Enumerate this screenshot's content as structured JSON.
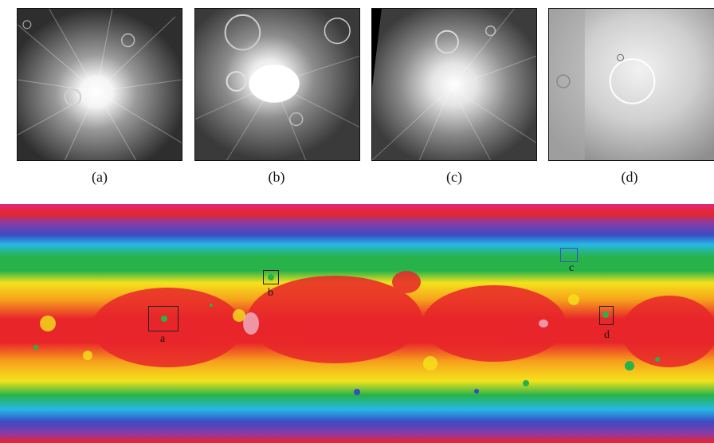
{
  "panels": [
    {
      "id": "a",
      "caption": "(a)"
    },
    {
      "id": "b",
      "caption": "(b)"
    },
    {
      "id": "c",
      "caption": "(c)"
    },
    {
      "id": "d",
      "caption": "(d)"
    }
  ],
  "map_labels": {
    "a": "a",
    "b": "b",
    "c": "c",
    "d": "d"
  },
  "colors": {
    "red": "#e8262a",
    "orange": "#f7a21c",
    "yellow": "#f4e21c",
    "green": "#27b34a",
    "cyan": "#25b8e6",
    "blue": "#3a4cc4",
    "purple": "#8a3aa6",
    "magenta": "#e0267a"
  }
}
